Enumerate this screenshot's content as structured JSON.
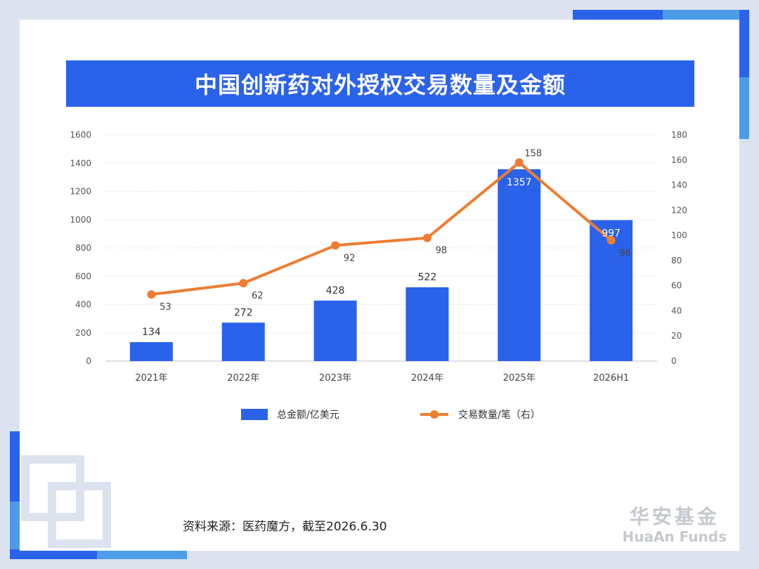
{
  "title": "中国创新药对外授权交易数量及金额",
  "source": "资料来源：医药魔方，截至2026.6.30",
  "brand": {
    "cn": "华安基金",
    "en": "HuaAn Funds"
  },
  "colors": {
    "bar": "#2b62ea",
    "line": "#ee7d31",
    "title_bg": "#2b62ea",
    "frame": "#dde3ee",
    "accent_light": "#4d9ce8"
  },
  "chart_data": {
    "type": "bar",
    "categories": [
      "2021年",
      "2022年",
      "2023年",
      "2024年",
      "2025年",
      "2026H1"
    ],
    "series": [
      {
        "name": "总金额/亿美元",
        "type": "bar",
        "axis": "left",
        "values": [
          134,
          272,
          428,
          522,
          1357,
          997
        ]
      },
      {
        "name": "交易数量/笔（右）",
        "type": "line",
        "axis": "right",
        "values": [
          53,
          62,
          92,
          98,
          158,
          96
        ]
      }
    ],
    "y_left": {
      "min": 0,
      "max": 1600,
      "ticks": [
        "0",
        "200",
        "400",
        "600",
        "800",
        "1000",
        "1200",
        "1400",
        "1600"
      ]
    },
    "y_right": {
      "min": 0,
      "max": 180,
      "ticks": [
        "0",
        "20",
        "40",
        "60",
        "80",
        "100",
        "120",
        "140",
        "160",
        "180"
      ]
    },
    "grid": true,
    "legend_position": "bottom"
  }
}
